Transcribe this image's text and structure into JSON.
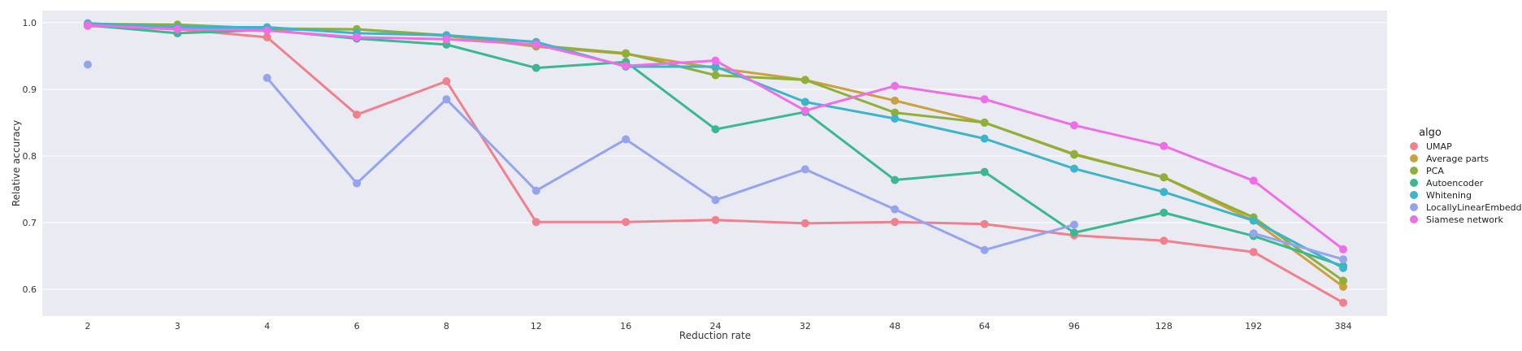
{
  "chart_data": {
    "type": "line",
    "title": "",
    "xlabel": "Reduction rate",
    "ylabel": "Relative accuracy",
    "categories": [
      "2",
      "3",
      "4",
      "6",
      "8",
      "12",
      "16",
      "24",
      "32",
      "48",
      "64",
      "96",
      "128",
      "192",
      "384"
    ],
    "ylim": [
      0.56,
      1.018
    ],
    "yticks": [
      0.6,
      0.7,
      0.8,
      0.9,
      1.0
    ],
    "ytick_labels": [
      "0.6",
      "0.7",
      "0.8",
      "0.9",
      "1.0"
    ],
    "grid": true,
    "legend": {
      "title": "algo",
      "position": "right"
    },
    "series": [
      {
        "name": "UMAP",
        "color": "#f0808d",
        "values": [
          0.995,
          0.99,
          0.978,
          0.862,
          0.912,
          0.701,
          0.701,
          0.704,
          0.699,
          0.701,
          0.698,
          0.681,
          0.673,
          0.656,
          0.58
        ]
      },
      {
        "name": "Average parts",
        "color": "#c9a13f",
        "values": [
          0.996,
          0.993,
          0.989,
          0.99,
          0.98,
          0.964,
          0.953,
          0.932,
          0.914,
          0.883,
          0.85,
          0.803,
          0.768,
          0.703,
          0.604
        ]
      },
      {
        "name": "PCA",
        "color": "#8faf3b",
        "values": [
          0.998,
          0.997,
          0.991,
          0.99,
          0.981,
          0.966,
          0.954,
          0.921,
          0.914,
          0.865,
          0.85,
          0.802,
          0.768,
          0.708,
          0.613
        ]
      },
      {
        "name": "Autoencoder",
        "color": "#3ab991",
        "values": [
          0.996,
          0.984,
          0.989,
          0.976,
          0.967,
          0.932,
          0.941,
          0.84,
          0.866,
          0.764,
          0.776,
          0.685,
          0.715,
          0.68,
          0.635
        ]
      },
      {
        "name": "Whitening",
        "color": "#3cb5ca",
        "values": [
          0.999,
          0.993,
          0.993,
          0.984,
          0.981,
          0.971,
          0.934,
          0.934,
          0.881,
          0.856,
          0.826,
          0.781,
          0.746,
          0.703,
          0.632
        ]
      },
      {
        "name": "LocallyLinearEmbedding",
        "color": "#94a4ee",
        "values": [
          0.937,
          null,
          0.917,
          0.759,
          0.885,
          0.748,
          0.825,
          0.734,
          0.78,
          0.72,
          0.659,
          0.697,
          null,
          0.684,
          0.645
        ]
      },
      {
        "name": "Siamese network",
        "color": "#ee6ee8",
        "values": [
          0.996,
          0.99,
          0.988,
          0.978,
          0.975,
          0.967,
          0.935,
          0.943,
          0.868,
          0.905,
          0.885,
          0.846,
          0.815,
          0.763,
          0.66
        ]
      }
    ]
  }
}
